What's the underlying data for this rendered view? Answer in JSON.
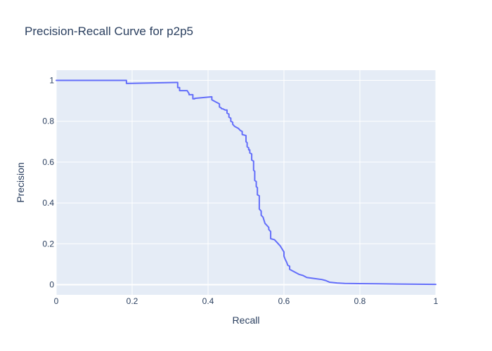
{
  "chart_data": {
    "type": "line",
    "title": "Precision-Recall Curve for p2p5",
    "xlabel": "Recall",
    "ylabel": "Precision",
    "xlim": [
      0,
      1
    ],
    "ylim": [
      -0.05,
      1.05
    ],
    "grid": true,
    "legend": "none",
    "colors": {
      "plot_background": "#e5ecf6",
      "grid": "#ffffff",
      "line": "#636efa",
      "text": "#2a3f5f"
    },
    "x_ticks": [
      {
        "value": 0,
        "label": "0"
      },
      {
        "value": 0.2,
        "label": "0.2"
      },
      {
        "value": 0.4,
        "label": "0.4"
      },
      {
        "value": 0.6,
        "label": "0.6"
      },
      {
        "value": 0.8,
        "label": "0.8"
      },
      {
        "value": 1,
        "label": "1"
      }
    ],
    "y_ticks": [
      {
        "value": 0,
        "label": "0"
      },
      {
        "value": 0.2,
        "label": "0.2"
      },
      {
        "value": 0.4,
        "label": "0.4"
      },
      {
        "value": 0.6,
        "label": "0.6"
      },
      {
        "value": 0.8,
        "label": "0.8"
      },
      {
        "value": 1,
        "label": "1"
      }
    ],
    "series": [
      {
        "x": [
          0,
          0.185,
          0.185,
          0.315,
          0.32,
          0.32,
          0.325,
          0.325,
          0.33,
          0.345,
          0.35,
          0.35,
          0.36,
          0.36,
          0.365,
          0.365,
          0.41,
          0.41,
          0.415,
          0.42,
          0.425,
          0.43,
          0.43,
          0.435,
          0.435,
          0.44,
          0.445,
          0.45,
          0.45,
          0.455,
          0.455,
          0.46,
          0.46,
          0.465,
          0.465,
          0.47,
          0.475,
          0.48,
          0.485,
          0.49,
          0.49,
          0.5,
          0.5,
          0.503,
          0.503,
          0.507,
          0.507,
          0.51,
          0.51,
          0.515,
          0.515,
          0.52,
          0.52,
          0.523,
          0.523,
          0.527,
          0.527,
          0.53,
          0.53,
          0.535,
          0.535,
          0.54,
          0.54,
          0.545,
          0.55,
          0.555,
          0.56,
          0.56,
          0.565,
          0.565,
          0.575,
          0.58,
          0.585,
          0.59,
          0.595,
          0.6,
          0.6,
          0.603,
          0.607,
          0.61,
          0.615,
          0.615,
          0.62,
          0.63,
          0.64,
          0.65,
          0.66,
          0.68,
          0.7,
          0.71,
          0.72,
          0.74,
          0.76,
          0.8,
          0.85,
          0.9,
          0.95,
          1.0
        ],
        "y": [
          1.0,
          1.0,
          0.985,
          0.99,
          0.99,
          0.965,
          0.965,
          0.95,
          0.95,
          0.95,
          0.935,
          0.93,
          0.93,
          0.91,
          0.91,
          0.912,
          0.92,
          0.905,
          0.9,
          0.895,
          0.89,
          0.885,
          0.87,
          0.865,
          0.862,
          0.86,
          0.855,
          0.855,
          0.84,
          0.835,
          0.82,
          0.815,
          0.8,
          0.795,
          0.785,
          0.775,
          0.77,
          0.765,
          0.755,
          0.75,
          0.735,
          0.73,
          0.7,
          0.695,
          0.675,
          0.67,
          0.66,
          0.66,
          0.645,
          0.64,
          0.61,
          0.605,
          0.56,
          0.555,
          0.51,
          0.505,
          0.48,
          0.475,
          0.44,
          0.435,
          0.37,
          0.36,
          0.34,
          0.33,
          0.3,
          0.29,
          0.28,
          0.27,
          0.26,
          0.225,
          0.22,
          0.21,
          0.2,
          0.19,
          0.175,
          0.16,
          0.14,
          0.125,
          0.11,
          0.095,
          0.09,
          0.075,
          0.07,
          0.06,
          0.05,
          0.045,
          0.035,
          0.03,
          0.025,
          0.02,
          0.012,
          0.008,
          0.006,
          0.005,
          0.004,
          0.003,
          0.002,
          0.001
        ]
      }
    ]
  }
}
